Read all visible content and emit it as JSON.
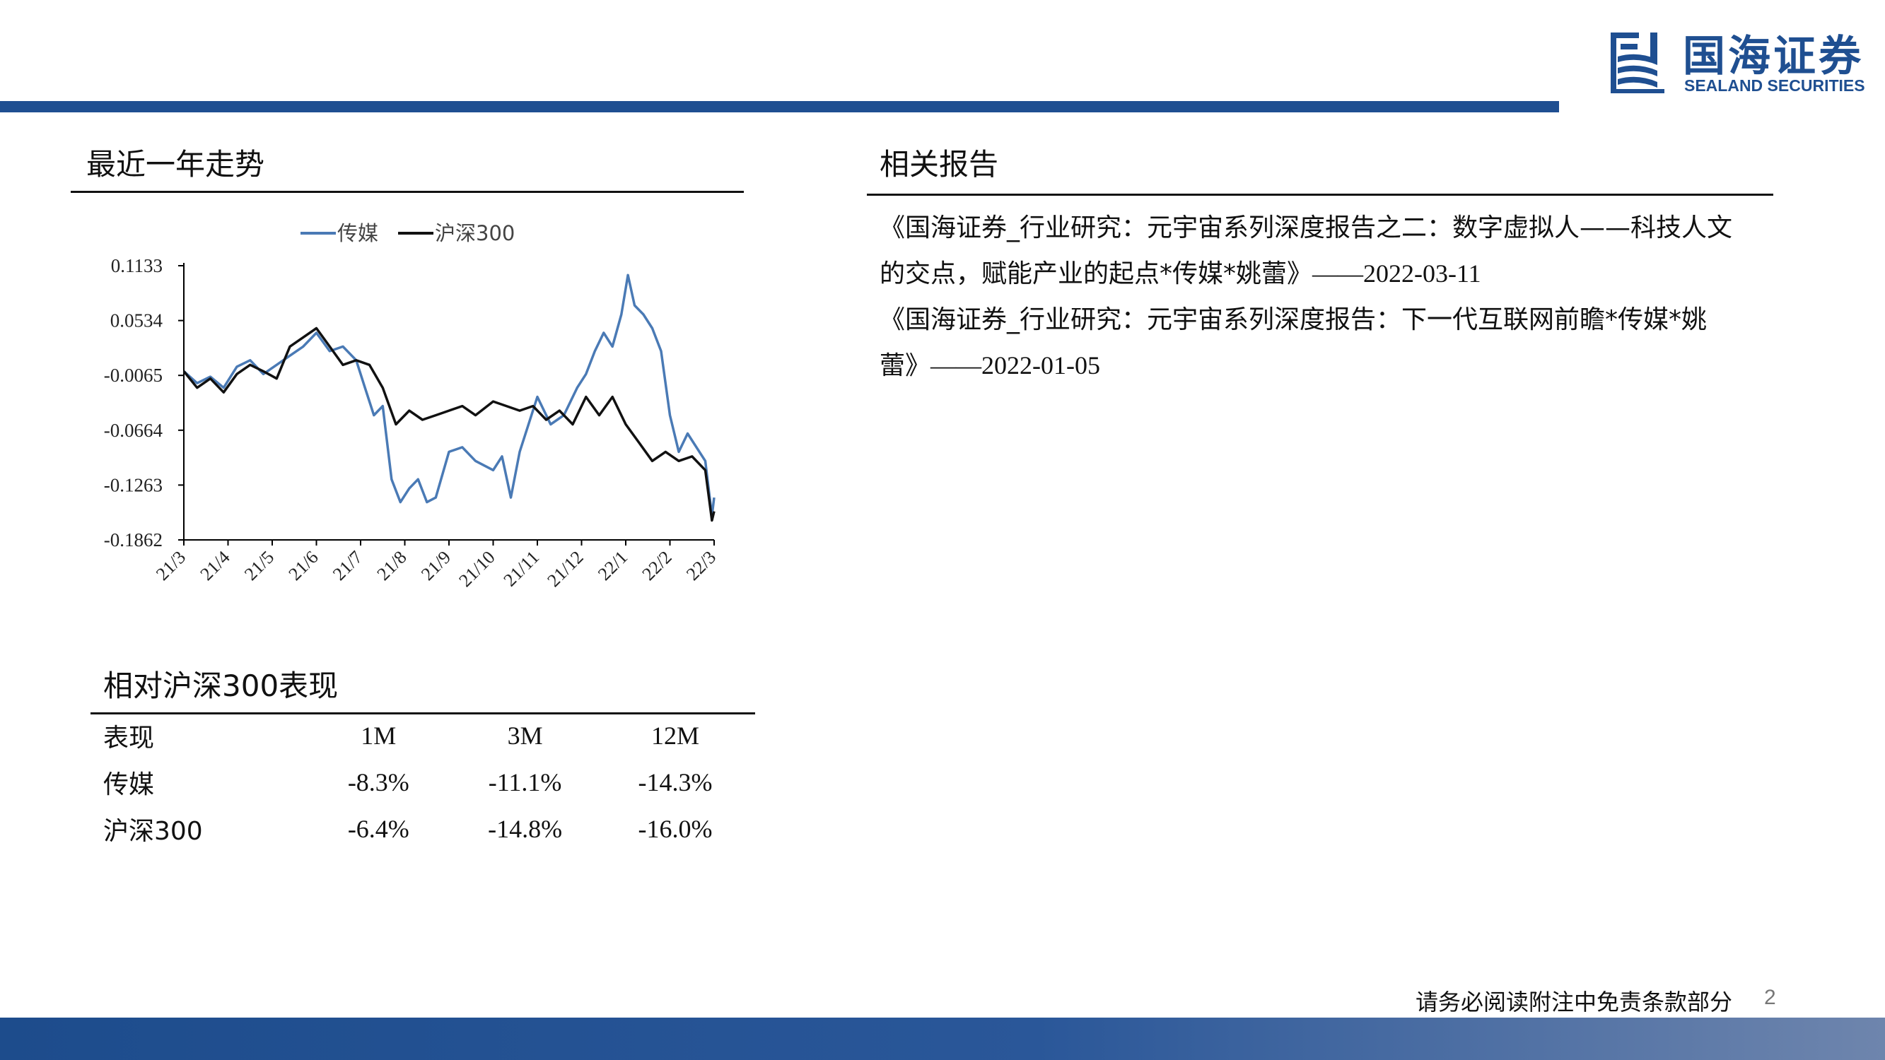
{
  "brand": {
    "name_cn": "国海证券",
    "name_en": "SEALAND SECURITIES",
    "color": "#1f4f91"
  },
  "trend": {
    "title": "最近一年走势"
  },
  "relative": {
    "title": "相对沪深300表现",
    "headers": [
      "表现",
      "1M",
      "3M",
      "12M"
    ],
    "rows": [
      {
        "name": "传媒",
        "m1": "-8.3%",
        "m3": "-11.1%",
        "m12": "-14.3%"
      },
      {
        "name": "沪深300",
        "m1": "-6.4%",
        "m3": "-14.8%",
        "m12": "-16.0%"
      }
    ]
  },
  "related": {
    "title": "相关报告",
    "reports": [
      {
        "line1": "《国海证券_行业研究：元宇宙系列深度报告之二：数字虚拟人——科技人文",
        "line2": "的交点，赋能产业的起点*传媒*姚蕾》",
        "date": "——2022-03-11"
      },
      {
        "line1": "《国海证券_行业研究：元宇宙系列深度报告：下一代互联网前瞻*传媒*姚",
        "line2": "蕾》",
        "date": "——2022-01-05"
      }
    ]
  },
  "footer": {
    "disclaimer": "请务必阅读附注中免责条款部分",
    "page": "2"
  },
  "chart_data": {
    "type": "line",
    "title": "",
    "x_ticks": [
      "21/3",
      "21/4",
      "21/5",
      "21/6",
      "21/7",
      "21/8",
      "21/9",
      "21/10",
      "21/11",
      "21/12",
      "22/1",
      "22/2",
      "22/3"
    ],
    "y_ticks": [
      "0.1133",
      "0.0534",
      "-0.0065",
      "-0.0664",
      "-0.1263",
      "-0.1862"
    ],
    "ylim": [
      -0.1862,
      0.1133
    ],
    "legend_position": "top",
    "series": [
      {
        "name": "传媒",
        "color": "#4a7ab5",
        "x": [
          0,
          0.3,
          0.6,
          0.9,
          1.2,
          1.5,
          1.8,
          2.1,
          2.4,
          2.7,
          3.0,
          3.3,
          3.6,
          3.9,
          4.1,
          4.3,
          4.5,
          4.7,
          4.9,
          5.1,
          5.3,
          5.5,
          5.7,
          6.0,
          6.3,
          6.6,
          7.0,
          7.2,
          7.4,
          7.6,
          7.8,
          8.0,
          8.3,
          8.6,
          8.9,
          9.1,
          9.3,
          9.5,
          9.7,
          9.9,
          10.05,
          10.2,
          10.4,
          10.6,
          10.8,
          11.0,
          11.2,
          11.4,
          11.6,
          11.8,
          11.95,
          12.0
        ],
        "values": [
          -0.002,
          -0.015,
          -0.008,
          -0.02,
          0.003,
          0.01,
          -0.005,
          0.005,
          0.015,
          0.025,
          0.04,
          0.02,
          0.025,
          0.01,
          -0.02,
          -0.05,
          -0.04,
          -0.12,
          -0.145,
          -0.13,
          -0.12,
          -0.145,
          -0.14,
          -0.09,
          -0.085,
          -0.1,
          -0.11,
          -0.095,
          -0.14,
          -0.09,
          -0.06,
          -0.03,
          -0.06,
          -0.05,
          -0.02,
          -0.005,
          0.02,
          0.04,
          0.025,
          0.06,
          0.103,
          0.07,
          0.06,
          0.045,
          0.02,
          -0.05,
          -0.09,
          -0.07,
          -0.085,
          -0.1,
          -0.16,
          -0.14
        ]
      },
      {
        "name": "沪深300",
        "color": "#111111",
        "x": [
          0,
          0.3,
          0.6,
          0.9,
          1.2,
          1.5,
          1.8,
          2.1,
          2.4,
          2.7,
          3.0,
          3.3,
          3.6,
          3.9,
          4.2,
          4.5,
          4.8,
          5.1,
          5.4,
          5.7,
          6.0,
          6.3,
          6.6,
          7.0,
          7.3,
          7.6,
          7.9,
          8.2,
          8.5,
          8.8,
          9.1,
          9.4,
          9.7,
          10.0,
          10.3,
          10.6,
          10.9,
          11.2,
          11.5,
          11.8,
          11.95,
          12.0
        ],
        "values": [
          -0.002,
          -0.02,
          -0.01,
          -0.025,
          -0.005,
          0.005,
          -0.002,
          -0.01,
          0.025,
          0.035,
          0.045,
          0.025,
          0.005,
          0.01,
          0.005,
          -0.02,
          -0.06,
          -0.045,
          -0.055,
          -0.05,
          -0.045,
          -0.04,
          -0.05,
          -0.035,
          -0.04,
          -0.045,
          -0.04,
          -0.055,
          -0.045,
          -0.06,
          -0.03,
          -0.05,
          -0.03,
          -0.06,
          -0.08,
          -0.1,
          -0.09,
          -0.1,
          -0.095,
          -0.11,
          -0.165,
          -0.155
        ]
      }
    ]
  }
}
